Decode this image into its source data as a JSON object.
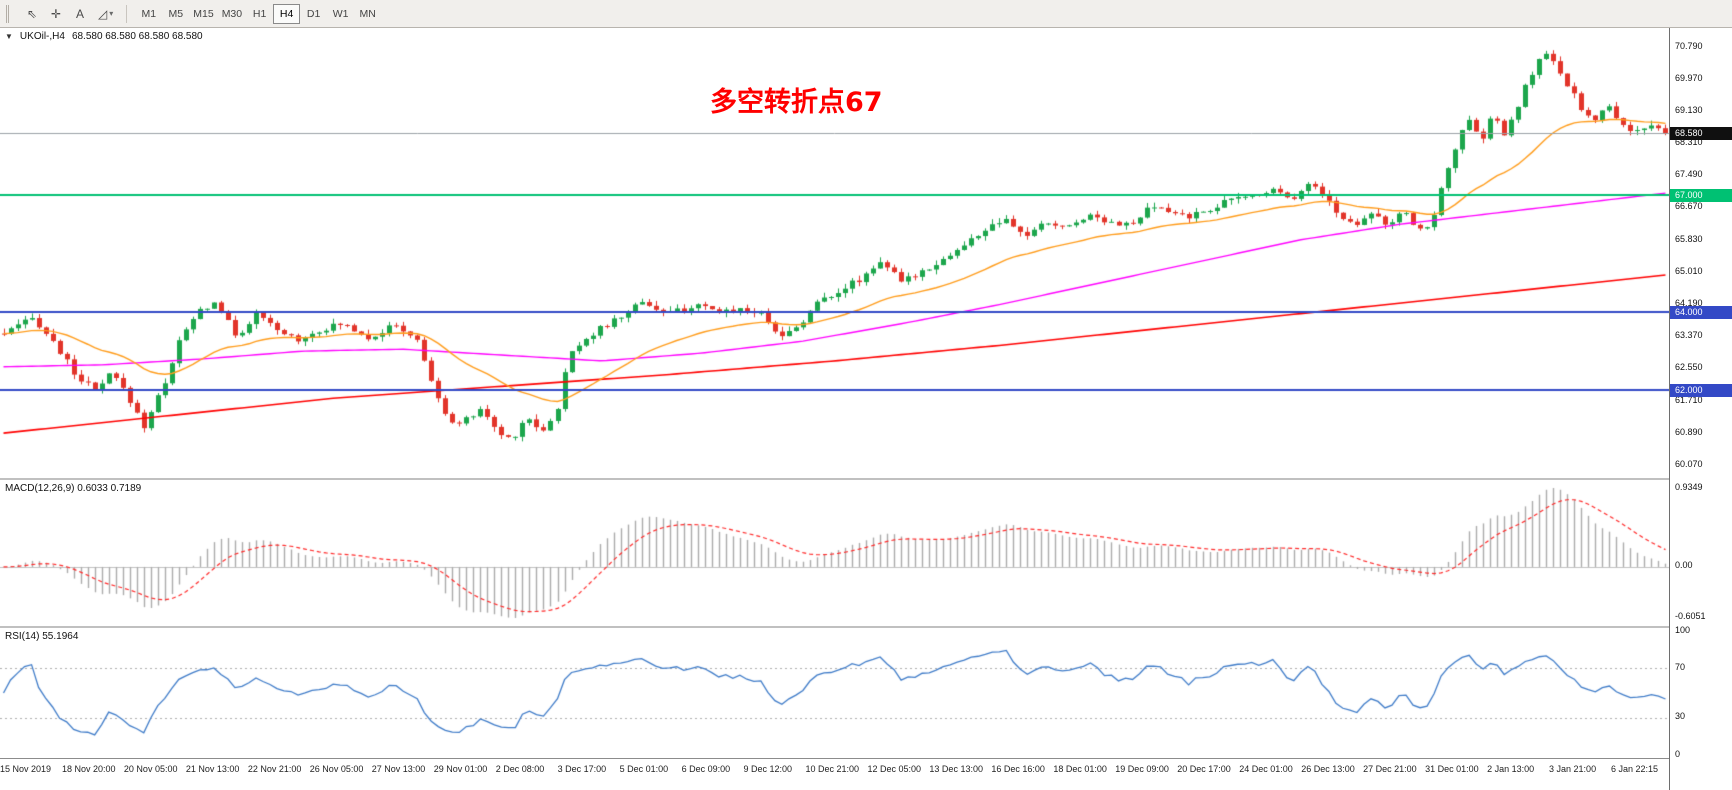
{
  "toolbar": {
    "icons": [
      {
        "name": "cursor-icon",
        "glyph": "⇖"
      },
      {
        "name": "crosshair-icon",
        "glyph": "✛"
      },
      {
        "name": "text-tool-icon",
        "glyph": "A"
      },
      {
        "name": "shapes-tool-icon",
        "glyph": "◿",
        "caret": "▾"
      }
    ],
    "timeframes": [
      "M1",
      "M5",
      "M15",
      "M30",
      "H1",
      "H4",
      "D1",
      "W1",
      "MN"
    ],
    "active_timeframe": "H4"
  },
  "chart": {
    "title_marker": "▼",
    "symbol_period": "UKOil-,H4",
    "ohlc": "68.580 68.580 68.580 68.580",
    "annotation": "多空转折点67",
    "current_price_label": "68.580",
    "colors": {
      "up": "#1CA64C",
      "down": "#E2342A",
      "ma_fast": "#FF9C1B",
      "ma_mid": "#FF00FF",
      "ma_slow": "#FF0000",
      "hline_green": "#00C173",
      "hline_blue": "#3349C6",
      "price_line": "#9AA0A6",
      "price_label_bg": "#101010",
      "macd_hist": "#ABABAB",
      "macd_signal": "#FF2A2A",
      "rsi_line": "#3E7BC8",
      "rsi_level": "#ADADAD",
      "annotation_color": "#FF0000"
    }
  },
  "macd_panel": {
    "label": "MACD(12,26,9) 0.6033 0.7189",
    "ticks": [
      {
        "label": "0.9349",
        "value": 0.9349
      },
      {
        "label": "0.00",
        "value": 0
      },
      {
        "label": "-0.6051",
        "value": -0.6051
      }
    ]
  },
  "rsi_panel": {
    "label": "RSI(14) 55.1964",
    "ticks": [
      {
        "label": "100",
        "value": 100
      },
      {
        "label": "70",
        "value": 70
      },
      {
        "label": "30",
        "value": 30
      },
      {
        "label": "0",
        "value": 0
      }
    ],
    "levels": [
      70,
      30
    ]
  },
  "chart_data": {
    "type": "candlestick",
    "symbol": "UKOil-",
    "timeframe": "H4",
    "candle_count": 238,
    "price_axis": {
      "ticks": [
        "70.790",
        "69.970",
        "69.130",
        "68.310",
        "67.490",
        "66.670",
        "65.830",
        "65.010",
        "64.190",
        "63.370",
        "62.550",
        "61.710",
        "60.890",
        "60.070"
      ],
      "range": [
        59.75,
        71.28
      ]
    },
    "hlines": [
      {
        "value": 67.0,
        "label": "67.000",
        "color": "#00C173"
      },
      {
        "value": 64.0,
        "label": "64.000",
        "color": "#3349C6"
      },
      {
        "value": 62.0,
        "label": "62.000",
        "color": "#3349C6"
      }
    ],
    "current_price": 68.58,
    "price_path": [
      [
        0,
        63.45
      ],
      [
        0.018,
        63.85
      ],
      [
        0.032,
        63.1
      ],
      [
        0.042,
        62.45
      ],
      [
        0.055,
        61.95
      ],
      [
        0.065,
        62.45
      ],
      [
        0.078,
        61.6
      ],
      [
        0.084,
        61.05
      ],
      [
        0.096,
        62.1
      ],
      [
        0.106,
        63.3
      ],
      [
        0.118,
        64.05
      ],
      [
        0.128,
        64.25
      ],
      [
        0.14,
        63.35
      ],
      [
        0.152,
        63.95
      ],
      [
        0.165,
        63.5
      ],
      [
        0.178,
        63.3
      ],
      [
        0.19,
        63.55
      ],
      [
        0.205,
        63.7
      ],
      [
        0.22,
        63.35
      ],
      [
        0.235,
        63.65
      ],
      [
        0.248,
        63.35
      ],
      [
        0.258,
        62.2
      ],
      [
        0.266,
        61.3
      ],
      [
        0.276,
        61.15
      ],
      [
        0.288,
        61.55
      ],
      [
        0.297,
        60.9
      ],
      [
        0.306,
        60.75
      ],
      [
        0.315,
        61.35
      ],
      [
        0.323,
        60.95
      ],
      [
        0.332,
        61.3
      ],
      [
        0.34,
        62.9
      ],
      [
        0.348,
        63.3
      ],
      [
        0.36,
        63.6
      ],
      [
        0.372,
        63.9
      ],
      [
        0.384,
        64.3
      ],
      [
        0.398,
        63.95
      ],
      [
        0.415,
        64.15
      ],
      [
        0.43,
        64
      ],
      [
        0.445,
        64.1
      ],
      [
        0.458,
        63.9
      ],
      [
        0.468,
        63.35
      ],
      [
        0.48,
        63.75
      ],
      [
        0.492,
        64.35
      ],
      [
        0.505,
        64.6
      ],
      [
        0.517,
        64.9
      ],
      [
        0.528,
        65.35
      ],
      [
        0.54,
        64.75
      ],
      [
        0.552,
        65.05
      ],
      [
        0.565,
        65.35
      ],
      [
        0.578,
        65.7
      ],
      [
        0.59,
        66.1
      ],
      [
        0.602,
        66.35
      ],
      [
        0.615,
        65.95
      ],
      [
        0.628,
        66.3
      ],
      [
        0.64,
        66.15
      ],
      [
        0.652,
        66.5
      ],
      [
        0.665,
        66.35
      ],
      [
        0.678,
        66.2
      ],
      [
        0.69,
        66.7
      ],
      [
        0.702,
        66.55
      ],
      [
        0.715,
        66.45
      ],
      [
        0.728,
        66.7
      ],
      [
        0.74,
        66.9
      ],
      [
        0.752,
        67
      ],
      [
        0.764,
        67.15
      ],
      [
        0.776,
        66.95
      ],
      [
        0.786,
        67.3
      ],
      [
        0.795,
        67
      ],
      [
        0.803,
        66.45
      ],
      [
        0.813,
        66.25
      ],
      [
        0.823,
        66.6
      ],
      [
        0.833,
        66.2
      ],
      [
        0.842,
        66.55
      ],
      [
        0.852,
        66.1
      ],
      [
        0.86,
        66.35
      ],
      [
        0.868,
        67.6
      ],
      [
        0.875,
        68.4
      ],
      [
        0.882,
        68.9
      ],
      [
        0.889,
        68.35
      ],
      [
        0.896,
        69.1
      ],
      [
        0.903,
        68.55
      ],
      [
        0.909,
        69
      ],
      [
        0.916,
        69.8
      ],
      [
        0.923,
        70.4
      ],
      [
        0.929,
        70.65
      ],
      [
        0.936,
        70.1
      ],
      [
        0.943,
        69.7
      ],
      [
        0.95,
        69.2
      ],
      [
        0.957,
        68.85
      ],
      [
        0.965,
        69.3
      ],
      [
        0.972,
        68.9
      ],
      [
        0.98,
        68.65
      ],
      [
        0.99,
        68.75
      ],
      [
        1,
        68.58
      ]
    ],
    "ma_mid_path": [
      [
        0,
        62.6
      ],
      [
        0.06,
        62.65
      ],
      [
        0.12,
        62.8
      ],
      [
        0.18,
        63.0
      ],
      [
        0.24,
        63.05
      ],
      [
        0.3,
        62.9
      ],
      [
        0.36,
        62.75
      ],
      [
        0.42,
        62.95
      ],
      [
        0.48,
        63.25
      ],
      [
        0.54,
        63.7
      ],
      [
        0.6,
        64.2
      ],
      [
        0.66,
        64.75
      ],
      [
        0.72,
        65.3
      ],
      [
        0.78,
        65.85
      ],
      [
        0.84,
        66.25
      ],
      [
        0.9,
        66.55
      ],
      [
        0.95,
        66.8
      ],
      [
        1,
        67.05
      ]
    ],
    "ma_slow_path": [
      [
        0,
        60.9
      ],
      [
        0.1,
        61.35
      ],
      [
        0.2,
        61.8
      ],
      [
        0.3,
        62.1
      ],
      [
        0.4,
        62.4
      ],
      [
        0.5,
        62.75
      ],
      [
        0.6,
        63.15
      ],
      [
        0.7,
        63.6
      ],
      [
        0.8,
        64.05
      ],
      [
        0.9,
        64.5
      ],
      [
        1,
        64.95
      ]
    ],
    "indicators": [
      {
        "name": "MACD",
        "params": [
          12,
          26,
          9
        ],
        "last_values": [
          0.6033,
          0.7189
        ],
        "axis": [
          -0.6051,
          0,
          0.9349
        ]
      },
      {
        "name": "RSI",
        "params": [
          14
        ],
        "last_value": 55.1964,
        "levels": [
          30,
          70
        ],
        "axis": [
          0,
          30,
          70,
          100
        ]
      }
    ],
    "x_labels": [
      "15 Nov 2019",
      "18 Nov 20:00",
      "20 Nov 05:00",
      "21 Nov 13:00",
      "22 Nov 21:00",
      "26 Nov 05:00",
      "27 Nov 13:00",
      "29 Nov 01:00",
      "2 Dec 08:00",
      "3 Dec 17:00",
      "5 Dec 01:00",
      "6 Dec 09:00",
      "9 Dec 12:00",
      "10 Dec 21:00",
      "12 Dec 05:00",
      "13 Dec 13:00",
      "16 Dec 16:00",
      "18 Dec 01:00",
      "19 Dec 09:00",
      "20 Dec 17:00",
      "24 Dec 01:00",
      "26 Dec 13:00",
      "27 Dec 21:00",
      "31 Dec 01:00",
      "2 Jan 13:00",
      "3 Jan 21:00",
      "6 Jan 22:15"
    ]
  }
}
